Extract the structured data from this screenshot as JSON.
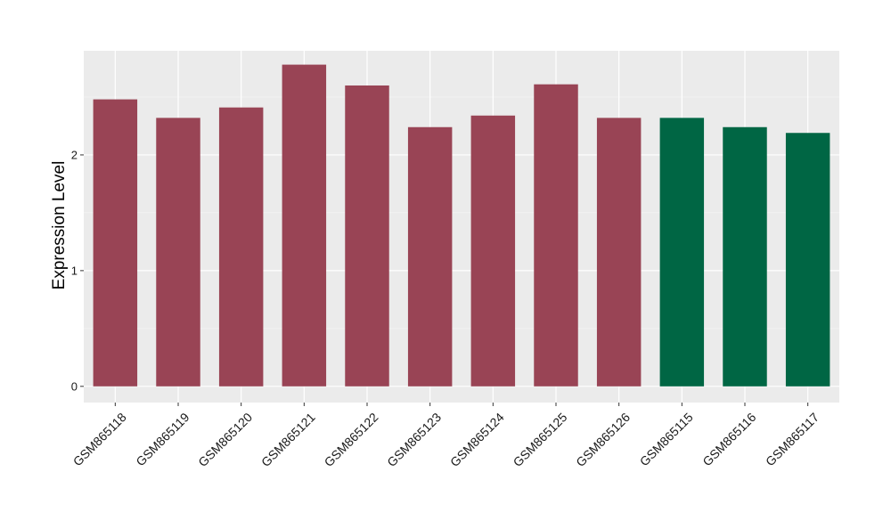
{
  "chart_data": {
    "type": "bar",
    "title": "",
    "xlabel": "",
    "ylabel": "Expression Level",
    "ylim": [
      -0.14,
      2.9
    ],
    "yticks": [
      0,
      1,
      2
    ],
    "grid": true,
    "legend": "none",
    "categories": [
      "GSM865118",
      "GSM865119",
      "GSM865120",
      "GSM865121",
      "GSM865122",
      "GSM865123",
      "GSM865124",
      "GSM865125",
      "GSM865126",
      "GSM865115",
      "GSM865116",
      "GSM865117"
    ],
    "values": [
      2.48,
      2.32,
      2.41,
      2.78,
      2.6,
      2.24,
      2.34,
      2.61,
      2.32,
      2.32,
      2.24,
      2.19
    ],
    "bar_colors": [
      "#994455",
      "#994455",
      "#994455",
      "#994455",
      "#994455",
      "#994455",
      "#994455",
      "#994455",
      "#994455",
      "#006644",
      "#006644",
      "#006644"
    ]
  },
  "colors": {
    "panel_background": "#ebebeb",
    "grid_major": "#ffffff",
    "grid_minor": "#f4f4f4"
  }
}
